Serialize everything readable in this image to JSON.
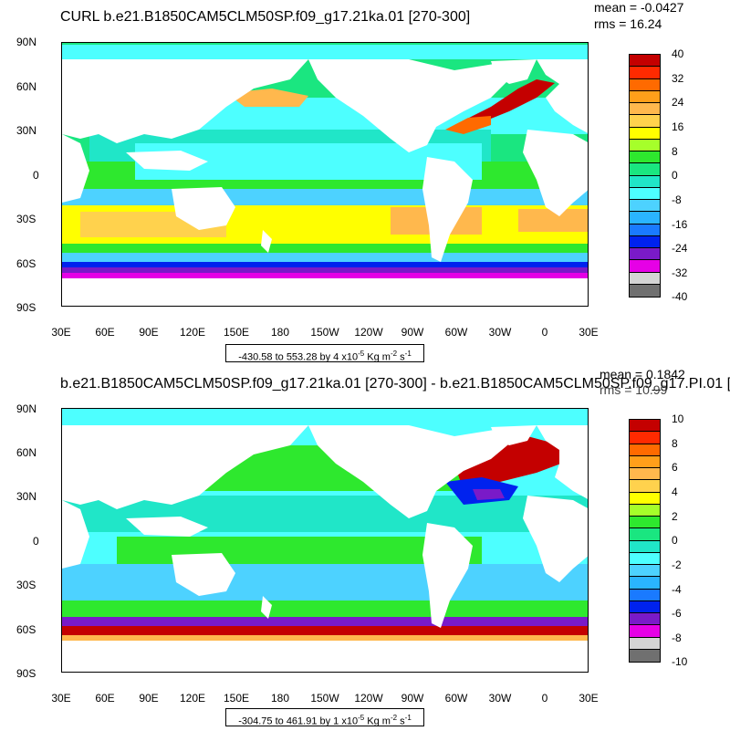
{
  "panels": [
    {
      "title": "CURL b.e21.B1850CAM5CLM50SP.f09_g17.21ka.01 [270-300]",
      "mean": "mean = -0.0427",
      "rms": "rms = 16.24",
      "range_text": "-430.58 to 553.28 by 4 x10",
      "range_exp": "-5",
      "range_units": " Kg m",
      "range_units_exp": "-2",
      "range_units_tail": " s",
      "range_units_tail_exp": "-1",
      "colorbar_labels": [
        "40",
        "32",
        "24",
        "16",
        "8",
        "0",
        "-8",
        "-16",
        "-24",
        "-32",
        "-40"
      ]
    },
    {
      "title": "b.e21.B1850CAM5CLM50SP.f09_g17.21ka.01 [270-300] - b.e21.B1850CAM5CLM50SP.f09_g17.PI.01 [",
      "mean": "mean = 0.1842",
      "rms": "rms = 10.99",
      "range_text": "-304.75 to 461.91 by 1 x10",
      "range_exp": "-5",
      "range_units": " Kg m",
      "range_units_exp": "-2",
      "range_units_tail": " s",
      "range_units_tail_exp": "-1",
      "colorbar_labels": [
        "10",
        "8",
        "6",
        "4",
        "2",
        "0",
        "-2",
        "-4",
        "-6",
        "-8",
        "-10"
      ]
    }
  ],
  "y_ticks": [
    "90N",
    "60N",
    "30N",
    "0",
    "30S",
    "60S",
    "90S"
  ],
  "x_ticks": [
    "30E",
    "60E",
    "90E",
    "120E",
    "150E",
    "180",
    "150W",
    "120W",
    "90W",
    "60W",
    "30W",
    "0",
    "30E"
  ],
  "colorbar_colors": [
    "#c40000",
    "#ff2a00",
    "#ff6a00",
    "#ff9f1a",
    "#ffb84d",
    "#ffd24d",
    "#ffff00",
    "#a6ff2a",
    "#2ee82e",
    "#1ae680",
    "#20e6c8",
    "#4dffff",
    "#4dd2ff",
    "#2ab4ff",
    "#1a7aff",
    "#0022ee",
    "#7a1ac8",
    "#e600e6",
    "#d4d4d4",
    "#707070"
  ],
  "colors": {
    "land": "#ffffff",
    "ocean_base": "#a6ff2a",
    "southern_band": "#7a1ac8"
  }
}
